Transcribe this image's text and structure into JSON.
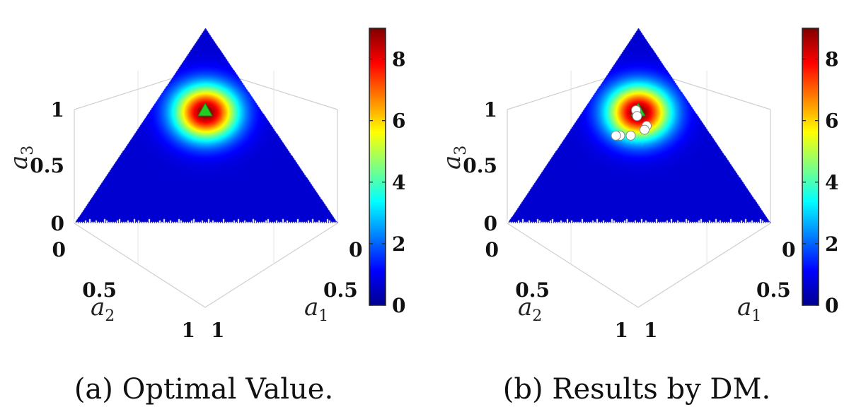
{
  "colors": {
    "colormap": "jet",
    "optimum_marker": "#22cc22",
    "dm_marker": "#ffffff"
  },
  "chart_data": [
    {
      "type": "heatmap",
      "caption": "(a) Optimal Value.",
      "axes": {
        "a1": {
          "symbol": "a",
          "sub": "1",
          "ticks": [
            "0",
            "0.5",
            "1"
          ]
        },
        "a2": {
          "symbol": "a",
          "sub": "2",
          "ticks": [
            "0",
            "0.5",
            "1"
          ]
        },
        "a3": {
          "symbol": "a",
          "sub": "3",
          "ticks": [
            "0",
            "0.5",
            "1"
          ]
        }
      },
      "colorbar": {
        "range": [
          0,
          9
        ],
        "ticks": [
          0,
          2,
          4,
          6,
          8
        ]
      },
      "peak": {
        "a1": 0.5,
        "a2": 0.5,
        "a3": 1.0,
        "value": 9
      },
      "optimum_marker": {
        "shape": "triangle",
        "a1": 0.5,
        "a2": 0.5,
        "a3": 1.0
      },
      "points": []
    },
    {
      "type": "heatmap",
      "caption": "(b) Results by DM.",
      "axes": {
        "a1": {
          "symbol": "a",
          "sub": "1",
          "ticks": [
            "0",
            "0.5",
            "1"
          ]
        },
        "a2": {
          "symbol": "a",
          "sub": "2",
          "ticks": [
            "0",
            "0.5",
            "1"
          ]
        },
        "a3": {
          "symbol": "a",
          "sub": "3",
          "ticks": [
            "0",
            "0.5",
            "1"
          ]
        }
      },
      "colorbar": {
        "range": [
          0,
          9
        ],
        "ticks": [
          0,
          2,
          4,
          6,
          8
        ]
      },
      "peak": {
        "a1": 0.5,
        "a2": 0.5,
        "a3": 1.0,
        "value": 9
      },
      "optimum_marker": {
        "shape": "triangle",
        "a1": 0.5,
        "a2": 0.5,
        "a3": 1.0
      },
      "points": [
        {
          "a1": 0.5,
          "a2": 0.48,
          "a3": 1.0
        },
        {
          "a1": 0.53,
          "a2": 0.5,
          "a3": 0.97
        },
        {
          "a1": 0.56,
          "a2": 0.44,
          "a3": 0.92
        },
        {
          "a1": 0.6,
          "a2": 0.5,
          "a3": 0.9
        },
        {
          "a1": 0.54,
          "a2": 0.57,
          "a3": 0.87
        },
        {
          "a1": 0.47,
          "a2": 0.6,
          "a3": 0.87
        },
        {
          "a1": 0.4,
          "a2": 0.57,
          "a3": 0.87
        }
      ]
    }
  ]
}
